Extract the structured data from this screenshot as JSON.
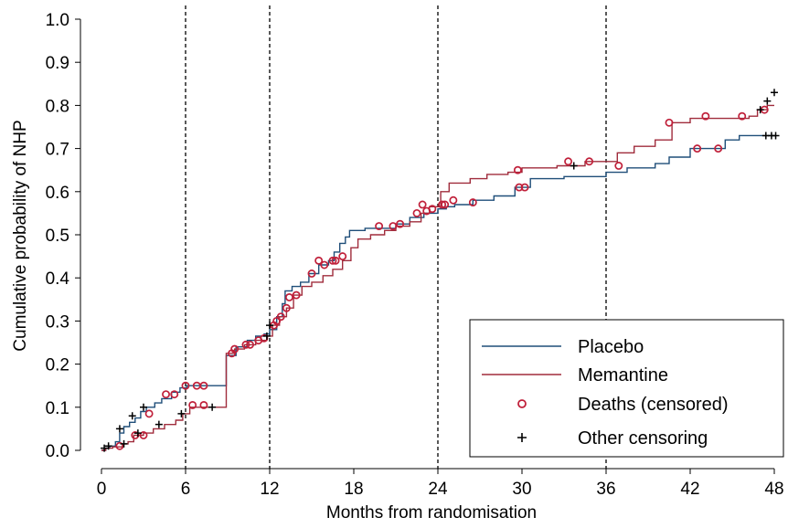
{
  "chart_data": {
    "type": "line",
    "xlabel": "Months from randomisation",
    "ylabel": "Cumulative probability of NHP",
    "xlim": [
      0,
      48
    ],
    "ylim": [
      0,
      1.0
    ],
    "x_ticks": [
      0,
      6,
      12,
      18,
      24,
      30,
      36,
      42,
      48
    ],
    "y_ticks": [
      "0.0",
      "0.1",
      "0.2",
      "0.3",
      "0.4",
      "0.5",
      "0.6",
      "0.7",
      "0.8",
      "0.9",
      "1.0"
    ],
    "vertical_dashed_lines": [
      6,
      12,
      24,
      36
    ],
    "grid": false,
    "legend_position": "bottom-right",
    "legend": [
      "Placebo",
      "Memantine",
      "Deaths (censored)",
      "Other censoring"
    ],
    "colors": {
      "placebo": "#1f4e79",
      "memantine": "#a02c3c",
      "deaths": "#c0203a",
      "other": "#000000"
    },
    "series": [
      {
        "name": "Placebo",
        "step": [
          [
            0,
            0
          ],
          [
            0.3,
            0.005
          ],
          [
            0.6,
            0.01
          ],
          [
            1.0,
            0.02
          ],
          [
            1.3,
            0.04
          ],
          [
            1.6,
            0.055
          ],
          [
            2.0,
            0.065
          ],
          [
            2.4,
            0.075
          ],
          [
            2.8,
            0.09
          ],
          [
            3.2,
            0.1
          ],
          [
            3.8,
            0.11
          ],
          [
            4.3,
            0.12
          ],
          [
            5.0,
            0.135
          ],
          [
            5.6,
            0.145
          ],
          [
            6.1,
            0.15
          ],
          [
            8.7,
            0.15
          ],
          [
            8.9,
            0.22
          ],
          [
            9.6,
            0.24
          ],
          [
            10.4,
            0.255
          ],
          [
            11.0,
            0.265
          ],
          [
            11.6,
            0.27
          ],
          [
            12.0,
            0.28
          ],
          [
            12.5,
            0.31
          ],
          [
            12.9,
            0.34
          ],
          [
            13.1,
            0.37
          ],
          [
            13.6,
            0.38
          ],
          [
            14.2,
            0.39
          ],
          [
            14.8,
            0.41
          ],
          [
            15.5,
            0.43
          ],
          [
            16.2,
            0.44
          ],
          [
            16.6,
            0.46
          ],
          [
            17.0,
            0.48
          ],
          [
            17.4,
            0.495
          ],
          [
            17.7,
            0.51
          ],
          [
            18.3,
            0.51
          ],
          [
            18.8,
            0.515
          ],
          [
            20.0,
            0.515
          ],
          [
            21.0,
            0.525
          ],
          [
            22.0,
            0.54
          ],
          [
            23.0,
            0.55
          ],
          [
            24.0,
            0.56
          ],
          [
            24.6,
            0.565
          ],
          [
            25.2,
            0.57
          ],
          [
            26.5,
            0.58
          ],
          [
            28.0,
            0.59
          ],
          [
            29.5,
            0.61
          ],
          [
            30.6,
            0.63
          ],
          [
            33.0,
            0.635
          ],
          [
            36.0,
            0.645
          ],
          [
            37.5,
            0.655
          ],
          [
            39.5,
            0.665
          ],
          [
            40.5,
            0.68
          ],
          [
            42.0,
            0.7
          ],
          [
            44.5,
            0.72
          ],
          [
            45.5,
            0.73
          ],
          [
            48.0,
            0.73
          ]
        ],
        "deaths": [
          [
            6.8,
            0.15
          ],
          [
            7.3,
            0.15
          ],
          [
            9.3,
            0.225
          ],
          [
            10.3,
            0.245
          ],
          [
            11.2,
            0.255
          ],
          [
            12.3,
            0.29
          ],
          [
            12.8,
            0.31
          ],
          [
            13.4,
            0.355
          ],
          [
            15.0,
            0.41
          ],
          [
            16.5,
            0.44
          ],
          [
            20.8,
            0.52
          ],
          [
            24.3,
            0.57
          ],
          [
            29.8,
            0.61
          ],
          [
            30.2,
            0.61
          ],
          [
            36.9,
            0.66
          ],
          [
            42.5,
            0.7
          ],
          [
            44.0,
            0.7
          ]
        ],
        "censoring": [
          [
            0.5,
            0.01
          ],
          [
            1.3,
            0.05
          ],
          [
            2.2,
            0.08
          ],
          [
            3.0,
            0.1
          ],
          [
            12.0,
            0.29
          ],
          [
            47.4,
            0.73
          ],
          [
            47.8,
            0.73
          ],
          [
            48.1,
            0.73
          ]
        ]
      },
      {
        "name": "Memantine",
        "step": [
          [
            0,
            0
          ],
          [
            0.3,
            0.005
          ],
          [
            0.8,
            0.008
          ],
          [
            1.5,
            0.015
          ],
          [
            1.9,
            0.02
          ],
          [
            2.3,
            0.035
          ],
          [
            3.0,
            0.04
          ],
          [
            3.7,
            0.05
          ],
          [
            4.5,
            0.06
          ],
          [
            5.3,
            0.07
          ],
          [
            5.8,
            0.085
          ],
          [
            6.3,
            0.1
          ],
          [
            8.6,
            0.1
          ],
          [
            8.9,
            0.225
          ],
          [
            9.5,
            0.235
          ],
          [
            10.2,
            0.245
          ],
          [
            11.0,
            0.255
          ],
          [
            11.8,
            0.265
          ],
          [
            12.2,
            0.29
          ],
          [
            12.7,
            0.31
          ],
          [
            13.2,
            0.33
          ],
          [
            13.7,
            0.36
          ],
          [
            14.3,
            0.38
          ],
          [
            15.0,
            0.39
          ],
          [
            15.8,
            0.405
          ],
          [
            16.5,
            0.42
          ],
          [
            17.2,
            0.44
          ],
          [
            17.8,
            0.47
          ],
          [
            18.3,
            0.49
          ],
          [
            19.2,
            0.5
          ],
          [
            20.2,
            0.51
          ],
          [
            21.0,
            0.52
          ],
          [
            22.0,
            0.53
          ],
          [
            22.8,
            0.55
          ],
          [
            23.4,
            0.565
          ],
          [
            24.2,
            0.6
          ],
          [
            24.8,
            0.62
          ],
          [
            26.3,
            0.63
          ],
          [
            27.5,
            0.64
          ],
          [
            29.0,
            0.645
          ],
          [
            30.0,
            0.655
          ],
          [
            32.5,
            0.66
          ],
          [
            34.5,
            0.67
          ],
          [
            36.2,
            0.67
          ],
          [
            36.8,
            0.69
          ],
          [
            38.0,
            0.705
          ],
          [
            39.5,
            0.72
          ],
          [
            40.7,
            0.76
          ],
          [
            42.0,
            0.77
          ],
          [
            43.5,
            0.77
          ],
          [
            46.2,
            0.775
          ],
          [
            46.8,
            0.79
          ],
          [
            47.5,
            0.8
          ],
          [
            48.0,
            0.8
          ]
        ],
        "deaths": [
          [
            1.3,
            0.01
          ],
          [
            2.4,
            0.035
          ],
          [
            3.0,
            0.035
          ],
          [
            3.4,
            0.085
          ],
          [
            4.6,
            0.13
          ],
          [
            5.2,
            0.13
          ],
          [
            6.0,
            0.15
          ],
          [
            6.5,
            0.105
          ],
          [
            7.3,
            0.105
          ],
          [
            9.5,
            0.235
          ],
          [
            10.6,
            0.245
          ],
          [
            11.6,
            0.26
          ],
          [
            12.5,
            0.3
          ],
          [
            13.2,
            0.33
          ],
          [
            13.9,
            0.36
          ],
          [
            15.5,
            0.44
          ],
          [
            15.9,
            0.43
          ],
          [
            16.7,
            0.44
          ],
          [
            17.2,
            0.45
          ],
          [
            19.8,
            0.52
          ],
          [
            21.3,
            0.525
          ],
          [
            22.5,
            0.55
          ],
          [
            22.9,
            0.57
          ],
          [
            23.2,
            0.555
          ],
          [
            23.6,
            0.56
          ],
          [
            24.5,
            0.57
          ],
          [
            25.1,
            0.58
          ],
          [
            26.5,
            0.575
          ],
          [
            29.7,
            0.65
          ],
          [
            33.3,
            0.67
          ],
          [
            34.8,
            0.67
          ],
          [
            40.5,
            0.76
          ],
          [
            43.1,
            0.775
          ],
          [
            45.7,
            0.775
          ],
          [
            47.3,
            0.79
          ]
        ],
        "censoring": [
          [
            0.2,
            0.005
          ],
          [
            1.6,
            0.015
          ],
          [
            2.6,
            0.04
          ],
          [
            4.1,
            0.06
          ],
          [
            5.7,
            0.085
          ],
          [
            7.9,
            0.1
          ],
          [
            11.8,
            0.265
          ],
          [
            33.7,
            0.66
          ],
          [
            47.0,
            0.79
          ],
          [
            47.5,
            0.81
          ],
          [
            48.0,
            0.83
          ]
        ]
      }
    ]
  }
}
